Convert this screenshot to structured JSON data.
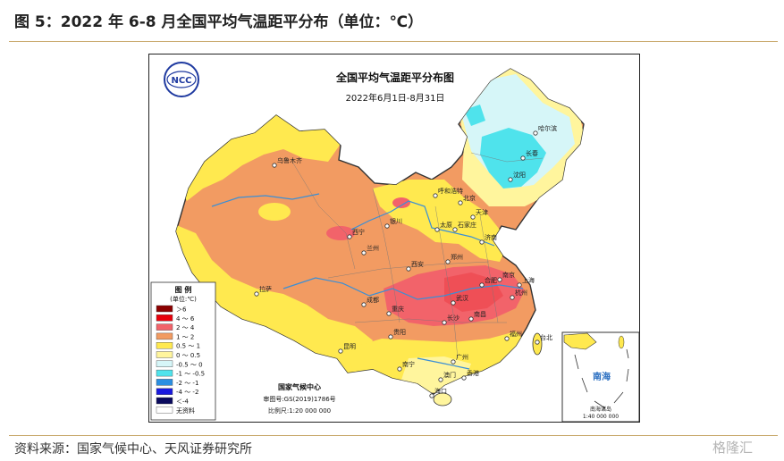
{
  "figure": {
    "title": "图 5：2022 年 6-8 月全国平均气温距平分布（单位：℃）",
    "source": "资料来源：国家气候中心、天风证券研究所",
    "watermark": "格隆汇"
  },
  "map": {
    "title": "全国平均气温距平分布图",
    "date_range": "2022年6月1日-8月31日",
    "logo_text": "NCC",
    "credit": {
      "org": "国家气候中心",
      "approval": "审图号:GS(2019)1786号",
      "scale": "比例尺:1:20 000 000"
    },
    "inset": {
      "label": "南海",
      "caption": "南海诸岛",
      "scale": "1:40 000 000"
    }
  },
  "legend": {
    "title": "图 例",
    "unit": "(单位:℃)",
    "items": [
      {
        "label": "＞6",
        "color": "#8b0000"
      },
      {
        "label": "4 ～ 6",
        "color": "#e8000b"
      },
      {
        "label": "2 ～ 4",
        "color": "#f2636a"
      },
      {
        "label": "1 ～ 2",
        "color": "#f29b62"
      },
      {
        "label": "0.5 ～ 1",
        "color": "#ffe94f"
      },
      {
        "label": "0 ～ 0.5",
        "color": "#fff59d"
      },
      {
        "label": "-0.5 ～ 0",
        "color": "#d6f6f8"
      },
      {
        "label": "-1 ～ -0.5",
        "color": "#4fe3ec"
      },
      {
        "label": "-2 ～ -1",
        "color": "#2b8fe2"
      },
      {
        "label": "-4 ～ -2",
        "color": "#1a1adf"
      },
      {
        "label": "＜-4",
        "color": "#0a0a5e"
      },
      {
        "label": "无资料",
        "color": "#ffffff"
      }
    ]
  },
  "cities": [
    {
      "name": "哈尔滨"
    },
    {
      "name": "长春"
    },
    {
      "name": "沈阳"
    },
    {
      "name": "乌鲁木齐"
    },
    {
      "name": "呼和浩特"
    },
    {
      "name": "北京"
    },
    {
      "name": "天津"
    },
    {
      "name": "石家庄"
    },
    {
      "name": "太原"
    },
    {
      "name": "银川"
    },
    {
      "name": "济南"
    },
    {
      "name": "西宁"
    },
    {
      "name": "兰州"
    },
    {
      "name": "郑州"
    },
    {
      "name": "西安"
    },
    {
      "name": "南京"
    },
    {
      "name": "合肥"
    },
    {
      "name": "上海"
    },
    {
      "name": "拉萨"
    },
    {
      "name": "成都"
    },
    {
      "name": "武汉"
    },
    {
      "name": "杭州"
    },
    {
      "name": "重庆"
    },
    {
      "name": "长沙"
    },
    {
      "name": "南昌"
    },
    {
      "name": "贵阳"
    },
    {
      "name": "福州"
    },
    {
      "name": "台北"
    },
    {
      "name": "昆明"
    },
    {
      "name": "南宁"
    },
    {
      "name": "广州"
    },
    {
      "name": "澳门"
    },
    {
      "name": "香港"
    },
    {
      "name": "海口"
    }
  ]
}
